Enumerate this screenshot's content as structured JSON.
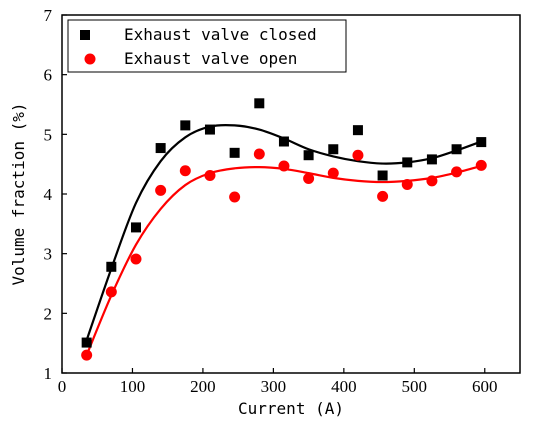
{
  "chart_data": {
    "type": "scatter",
    "xlabel": "Current (A)",
    "ylabel": "Volume fraction (%)",
    "xlim": [
      0,
      650
    ],
    "ylim": [
      1,
      7
    ],
    "xticks": [
      0,
      100,
      200,
      300,
      400,
      500,
      600
    ],
    "yticks": [
      1,
      2,
      3,
      4,
      5,
      6,
      7
    ],
    "grid": false,
    "legend_position": "top-left",
    "series": [
      {
        "name": "Exhaust valve closed",
        "marker": "square",
        "color": "#000000",
        "x": [
          35,
          70,
          105,
          140,
          175,
          210,
          245,
          280,
          315,
          350,
          385,
          420,
          455,
          490,
          525,
          560,
          595
        ],
        "y": [
          1.51,
          2.78,
          3.44,
          4.77,
          5.15,
          5.08,
          4.69,
          5.52,
          4.88,
          4.65,
          4.75,
          5.07,
          4.31,
          4.53,
          4.58,
          4.75,
          4.87
        ],
        "fit": {
          "x": [
            35,
            70,
            105,
            140,
            175,
            210,
            245,
            280,
            315,
            350,
            385,
            420,
            455,
            490,
            525,
            560,
            595
          ],
          "y": [
            1.55,
            2.75,
            3.85,
            4.55,
            4.95,
            5.13,
            5.15,
            5.08,
            4.93,
            4.75,
            4.63,
            4.55,
            4.51,
            4.53,
            4.6,
            4.73,
            4.88
          ]
        }
      },
      {
        "name": "Exhaust valve open",
        "marker": "circle",
        "color": "#ff0000",
        "x": [
          35,
          70,
          105,
          140,
          175,
          210,
          245,
          280,
          315,
          350,
          385,
          420,
          455,
          490,
          525,
          560,
          595
        ],
        "y": [
          1.3,
          2.36,
          2.91,
          4.06,
          4.39,
          4.31,
          3.95,
          4.67,
          4.47,
          4.26,
          4.35,
          4.65,
          3.96,
          4.16,
          4.22,
          4.37,
          4.48
        ],
        "fit": {
          "x": [
            35,
            70,
            105,
            140,
            175,
            210,
            245,
            280,
            315,
            350,
            385,
            420,
            455,
            490,
            525,
            560,
            595
          ],
          "y": [
            1.3,
            2.3,
            3.15,
            3.75,
            4.15,
            4.35,
            4.43,
            4.45,
            4.42,
            4.35,
            4.27,
            4.22,
            4.2,
            4.22,
            4.27,
            4.36,
            4.47
          ]
        }
      }
    ]
  }
}
